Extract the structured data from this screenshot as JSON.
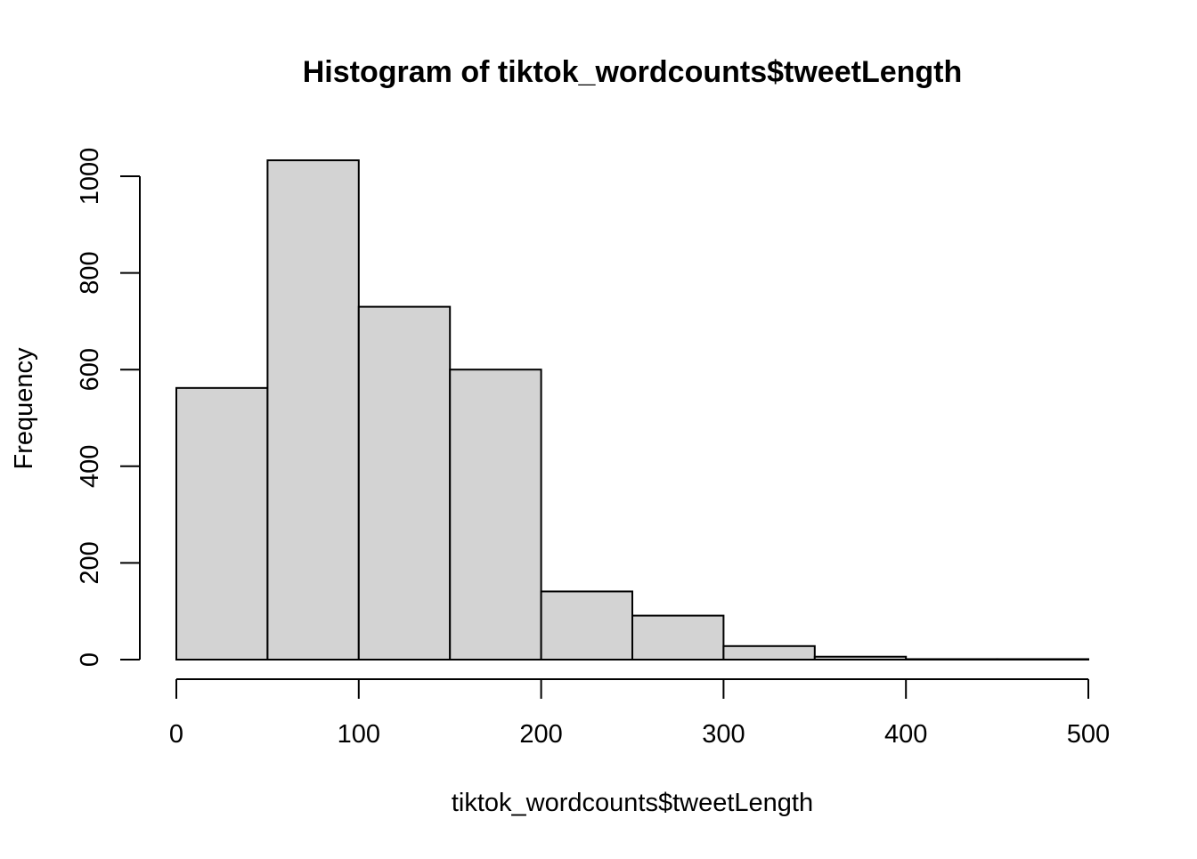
{
  "chart_data": {
    "type": "bar",
    "title": "Histogram of tiktok_wordcounts$tweetLength",
    "xlabel": "tiktok_wordcounts$tweetLength",
    "ylabel": "Frequency",
    "bins": [
      {
        "start": 0,
        "end": 50,
        "count": 562
      },
      {
        "start": 50,
        "end": 100,
        "count": 1033
      },
      {
        "start": 100,
        "end": 150,
        "count": 730
      },
      {
        "start": 150,
        "end": 200,
        "count": 600
      },
      {
        "start": 200,
        "end": 250,
        "count": 141
      },
      {
        "start": 250,
        "end": 300,
        "count": 91
      },
      {
        "start": 300,
        "end": 350,
        "count": 28
      },
      {
        "start": 350,
        "end": 400,
        "count": 6
      },
      {
        "start": 400,
        "end": 450,
        "count": 1
      },
      {
        "start": 450,
        "end": 500,
        "count": 1
      }
    ],
    "xlim": [
      0,
      500
    ],
    "ylim": [
      0,
      1000
    ],
    "x_ticks": [
      0,
      100,
      200,
      300,
      400,
      500
    ],
    "y_ticks": [
      0,
      200,
      400,
      600,
      800,
      1000
    ],
    "bar_color": "#d3d3d3",
    "edge_color": "#000000",
    "grid": false,
    "legend": "none"
  }
}
